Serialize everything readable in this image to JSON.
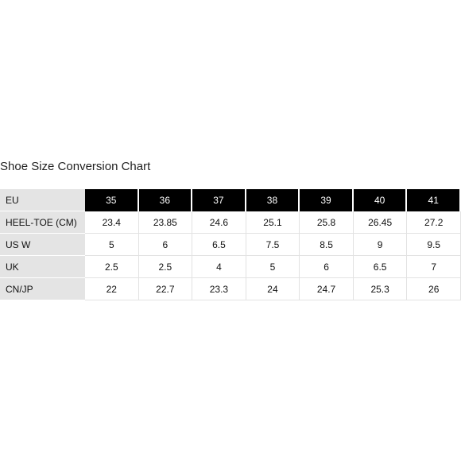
{
  "title": "Shoe Size Conversion Chart",
  "table": {
    "header": [
      "EU",
      "35",
      "36",
      "37",
      "38",
      "39",
      "40",
      "41"
    ],
    "rows": [
      [
        "HEEL-TOE (CM)",
        "23.4",
        "23.85",
        "24.6",
        "25.1",
        "25.8",
        "26.45",
        "27.2"
      ],
      [
        "US W",
        "5",
        "6",
        "6.5",
        "7.5",
        "8.5",
        "9",
        "9.5"
      ],
      [
        "UK",
        "2.5",
        "2.5",
        "4",
        "5",
        "6",
        "6.5",
        "7"
      ],
      [
        "CN/JP",
        "22",
        "22.7",
        "23.3",
        "24",
        "24.7",
        "25.3",
        "26"
      ]
    ]
  }
}
